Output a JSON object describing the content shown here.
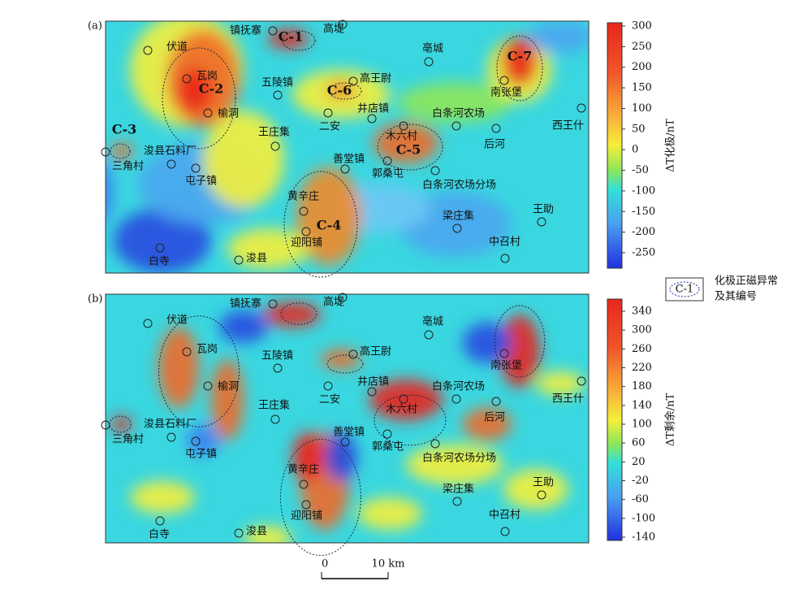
{
  "panels": [
    {
      "label": "(a)",
      "anomalies": [
        "C-1",
        "C-2",
        "C-3",
        "C-4",
        "C-5",
        "C-6",
        "C-7"
      ],
      "colorbar": {
        "title": "ΔT化极/nT",
        "ticks": [
          300,
          250,
          200,
          150,
          100,
          50,
          0,
          -50,
          -100,
          -150,
          -200,
          -250
        ]
      }
    },
    {
      "label": "(b)",
      "colorbar": {
        "title": "ΔT剩余/nT",
        "ticks": [
          340,
          300,
          260,
          220,
          180,
          140,
          100,
          60,
          20,
          -20,
          -60,
          -100,
          -140
        ]
      }
    }
  ],
  "places": [
    "伏道",
    "镇抚寨",
    "高堤",
    "亳城",
    "瓦岗",
    "五陵镇",
    "高王尉",
    "南张堡",
    "榆洞",
    "井店镇",
    "白条河农场",
    "二安",
    "王庄集",
    "木六村",
    "西王什",
    "后河",
    "浚县石料厂",
    "三角村",
    "屯子镇",
    "善堂镇",
    "郭桑屯",
    "白条河农场分场",
    "黄辛庄",
    "梁庄集",
    "王助",
    "迎阳铺",
    "中召村",
    "白寺",
    "浚县"
  ],
  "legend": {
    "symbol": "C-1",
    "lines": [
      "化极正磁异常",
      "及其编号"
    ]
  },
  "scale_bar": {
    "ticks": [
      0,
      {
        "value": 10,
        "label": "10 km"
      }
    ]
  }
}
